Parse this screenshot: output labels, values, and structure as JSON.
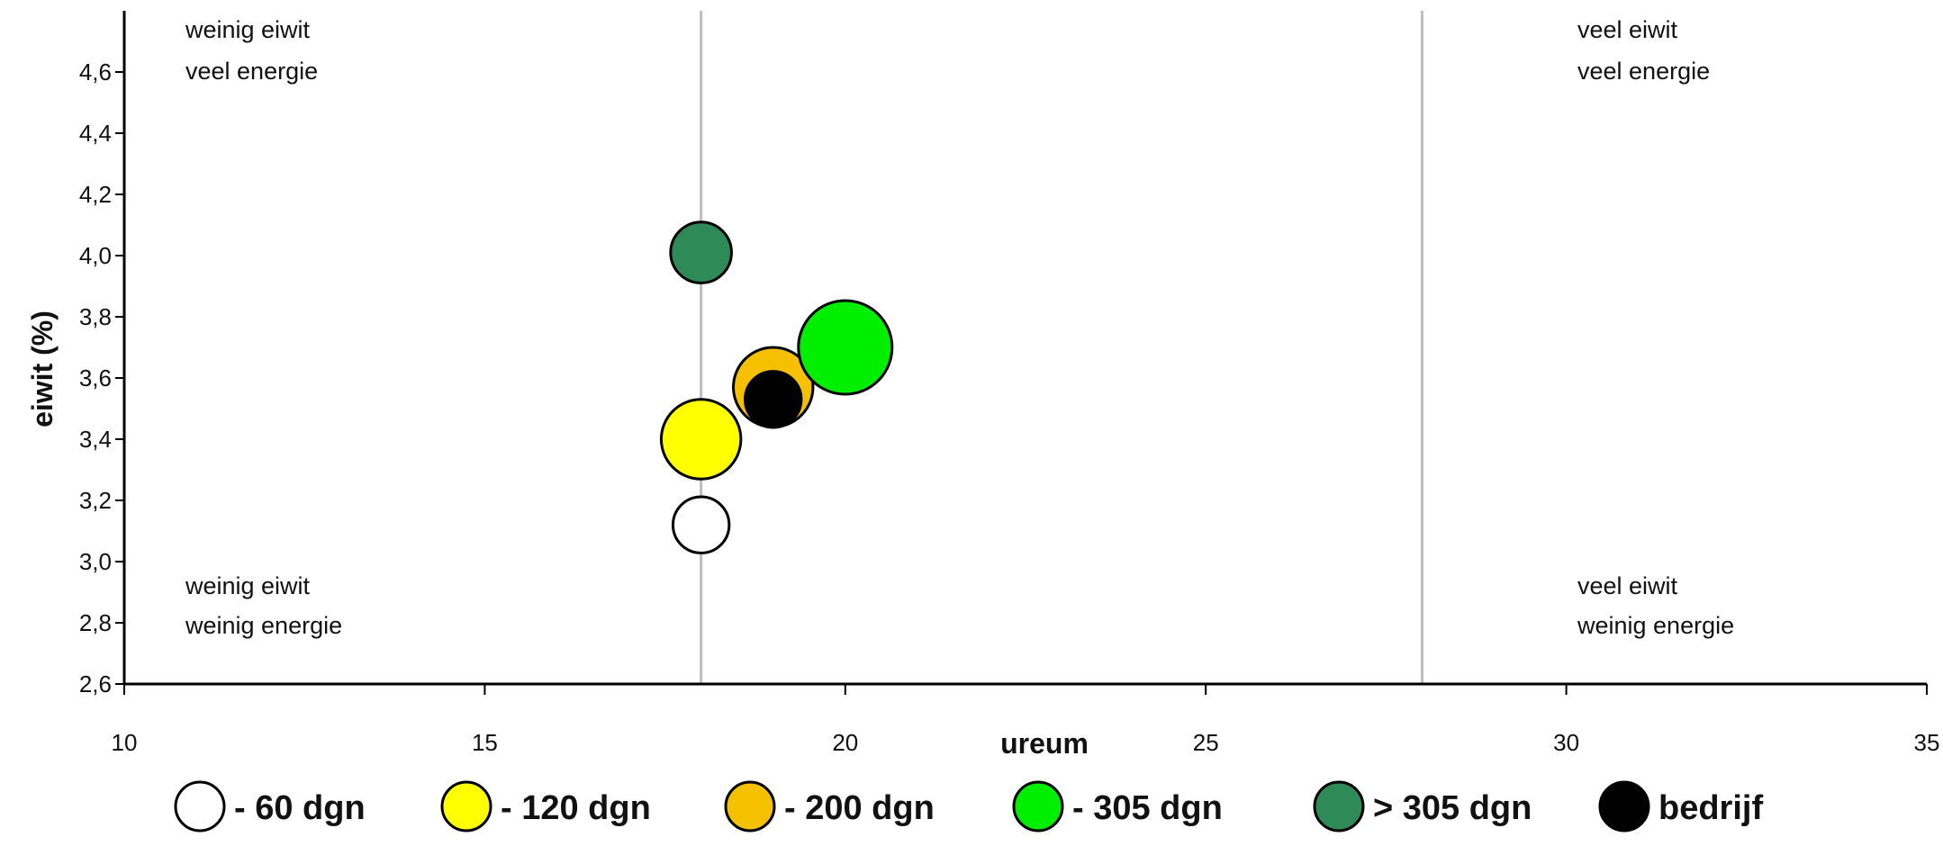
{
  "chart_data": {
    "type": "scatter",
    "title": "",
    "xlabel": "ureum",
    "ylabel": "eiwit (%)",
    "xlim": [
      10,
      35
    ],
    "ylim": [
      2.6,
      4.8
    ],
    "x_ticks": [
      "10",
      "15",
      "20",
      "25",
      "30",
      "35"
    ],
    "y_ticks": [
      "2,6",
      "2,8",
      "3,0",
      "3,2",
      "3,4",
      "3,6",
      "3,8",
      "4,0",
      "4,2",
      "4,4",
      "4,6"
    ],
    "reference_lines_x": [
      18,
      28
    ],
    "grid": false,
    "legend_position": "bottom",
    "quadrant_labels": [
      {
        "line1": "weinig eiwit",
        "line2": "veel energie"
      },
      {
        "line1": "veel eiwit",
        "line2": "veel energie"
      },
      {
        "line1": "weinig eiwit",
        "line2": "weinig energie"
      },
      {
        "line1": "veel eiwit",
        "line2": "weinig energie"
      }
    ],
    "series": [
      {
        "name": "- 60 dgn",
        "color": "#ffffff",
        "x": 18,
        "y": 3.12,
        "size": 0.6
      },
      {
        "name": "- 120 dgn",
        "color": "#ffff00",
        "x": 18,
        "y": 3.4,
        "size": 0.85
      },
      {
        "name": "- 200 dgn",
        "color": "#f5c000",
        "x": 19,
        "y": 3.57,
        "size": 0.85
      },
      {
        "name": "- 305 dgn",
        "color": "#00ee00",
        "x": 20,
        "y": 3.7,
        "size": 1.0
      },
      {
        "name": "> 305 dgn",
        "color": "#2e8b57",
        "x": 18,
        "y": 4.01,
        "size": 0.65
      },
      {
        "name": "bedrijf",
        "color": "#000000",
        "x": 19,
        "y": 3.53,
        "size": 0.6
      }
    ]
  }
}
